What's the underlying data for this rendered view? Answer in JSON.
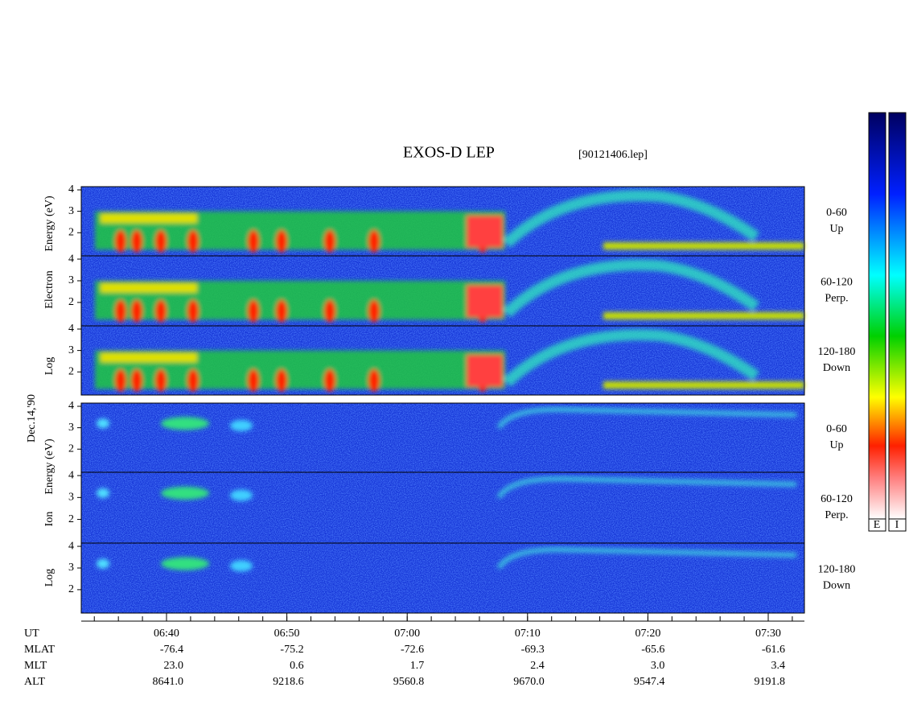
{
  "chart_data": {
    "type": "spectrogram",
    "title": "EXOS-D LEP",
    "subtitle": "[90121406.lep]",
    "date_label": "Dec.14,'90",
    "electron_ylabel": [
      "Log",
      "Electron",
      "Energy (eV)"
    ],
    "ion_ylabel": [
      "Log",
      "Ion",
      "Energy (eV)"
    ],
    "ylim": [
      0.92,
      4.15
    ],
    "yticks": [
      2,
      3,
      4
    ],
    "panels": [
      {
        "angle": "0-60",
        "direction": "Up"
      },
      {
        "angle": "60-120",
        "direction": "Perp."
      },
      {
        "angle": "120-180",
        "direction": "Down"
      },
      {
        "angle": "0-60",
        "direction": "Up"
      },
      {
        "angle": "60-120",
        "direction": "Perp."
      },
      {
        "angle": "120-180",
        "direction": "Down"
      }
    ],
    "xticks": [
      "06:40",
      "06:50",
      "07:00",
      "07:10",
      "07:20",
      "07:30"
    ],
    "ephemeris": [
      {
        "label": "UT",
        "values": []
      },
      {
        "label": "MLAT",
        "values": [
          "-76.4",
          "-75.2",
          "-72.6",
          "-69.3",
          "-65.6",
          "-61.6"
        ]
      },
      {
        "label": "MLT",
        "values": [
          "23.0",
          "0.6",
          "1.7",
          "2.4",
          "3.0",
          "3.4"
        ]
      },
      {
        "label": "ALT",
        "values": [
          "8641.0",
          "9218.6",
          "9560.8",
          "9670.0",
          "9547.4",
          "9191.8"
        ]
      }
    ],
    "colorbar_labels": [
      "E",
      "I"
    ]
  }
}
